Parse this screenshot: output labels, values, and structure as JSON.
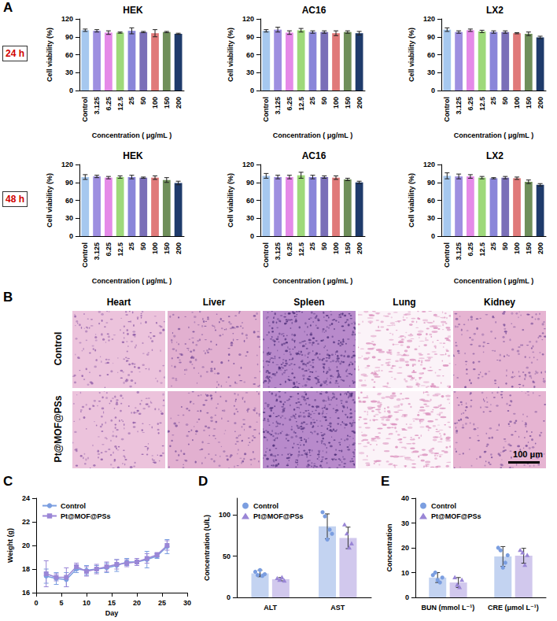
{
  "panel_letters": [
    "A",
    "B",
    "C",
    "D",
    "E"
  ],
  "row_labels": [
    "24 h",
    "48 h"
  ],
  "histology": {
    "columns": [
      "Heart",
      "Liver",
      "Spleen",
      "Lung",
      "Kidney"
    ],
    "rows": [
      "Control",
      "Pt@MOF@PSs"
    ],
    "scale_bar": "100 μm"
  },
  "chart_data": [
    {
      "type": "bar",
      "title": "HEK",
      "x_label": "Concentration ( μg/mL )",
      "y_label": "Cell viability (%)",
      "categories": [
        "Control",
        "3.125",
        "6.25",
        "12.5",
        "25",
        "50",
        "100",
        "150",
        "200"
      ],
      "values": [
        101,
        100,
        97,
        97,
        100,
        98,
        96,
        98,
        95
      ],
      "errors": [
        2,
        2,
        3,
        1,
        5,
        1,
        6,
        1,
        1
      ],
      "colors": [
        "#a6c8ef",
        "#9e8fe0",
        "#e58ae8",
        "#9ed97a",
        "#8a86d9",
        "#7a6fb8",
        "#e07a7a",
        "#6f8f5a",
        "#1f3b6b"
      ],
      "ylim": [
        0,
        120
      ],
      "yticks": [
        0,
        30,
        60,
        90,
        120
      ]
    },
    {
      "type": "bar",
      "title": "AC16",
      "x_label": "Concentration ( μg/mL )",
      "y_label": "Cell viability (%)",
      "categories": [
        "Control",
        "3.125",
        "6.25",
        "12.5",
        "25",
        "50",
        "100",
        "150",
        "200"
      ],
      "values": [
        100,
        102,
        97,
        101,
        98,
        98,
        96,
        98,
        96
      ],
      "errors": [
        2,
        4,
        3,
        3,
        2,
        2,
        4,
        2,
        3
      ],
      "colors": [
        "#a6c8ef",
        "#9e8fe0",
        "#e58ae8",
        "#9ed97a",
        "#8a86d9",
        "#7a6fb8",
        "#e07a7a",
        "#6f8f5a",
        "#1f3b6b"
      ],
      "ylim": [
        0,
        120
      ],
      "yticks": [
        0,
        30,
        60,
        90,
        120
      ]
    },
    {
      "type": "bar",
      "title": "LX2",
      "x_label": "Concentration ( μg/mL )",
      "y_label": "Cell viability (%)",
      "categories": [
        "Control",
        "3.125",
        "6.25",
        "12.5",
        "25",
        "50",
        "100",
        "150",
        "200"
      ],
      "values": [
        102,
        98,
        101,
        99,
        98,
        98,
        96,
        95,
        89
      ],
      "errors": [
        3,
        2,
        2,
        2,
        2,
        2,
        1,
        3,
        2
      ],
      "colors": [
        "#a6c8ef",
        "#9e8fe0",
        "#e58ae8",
        "#9ed97a",
        "#8a86d9",
        "#7a6fb8",
        "#e07a7a",
        "#6f8f5a",
        "#1f3b6b"
      ],
      "ylim": [
        0,
        120
      ],
      "yticks": [
        0,
        30,
        60,
        90,
        120
      ]
    },
    {
      "type": "bar",
      "title": "HEK",
      "x_label": "Concentration ( μg/mL )",
      "y_label": "Cell viability (%)",
      "categories": [
        "Control",
        "3.125",
        "6.25",
        "12.5",
        "25",
        "50",
        "100",
        "150",
        "200"
      ],
      "values": [
        99,
        100,
        98,
        99,
        99,
        98,
        98,
        94,
        89
      ],
      "errors": [
        4,
        2,
        2,
        2,
        3,
        1,
        3,
        4,
        3
      ],
      "colors": [
        "#a6c8ef",
        "#9e8fe0",
        "#e58ae8",
        "#9ed97a",
        "#8a86d9",
        "#7a6fb8",
        "#e07a7a",
        "#6f8f5a",
        "#1f3b6b"
      ],
      "ylim": [
        0,
        120
      ],
      "yticks": [
        0,
        30,
        60,
        90,
        120
      ]
    },
    {
      "type": "bar",
      "title": "AC16",
      "x_label": "Concentration ( μg/mL )",
      "y_label": "Cell viability (%)",
      "categories": [
        "Control",
        "3.125",
        "6.25",
        "12.5",
        "25",
        "50",
        "100",
        "150",
        "200"
      ],
      "values": [
        101,
        99,
        99,
        102,
        99,
        99,
        98,
        95,
        90
      ],
      "errors": [
        4,
        3,
        3,
        5,
        3,
        2,
        3,
        2,
        2
      ],
      "colors": [
        "#a6c8ef",
        "#9e8fe0",
        "#e58ae8",
        "#9ed97a",
        "#8a86d9",
        "#7a6fb8",
        "#e07a7a",
        "#6f8f5a",
        "#1f3b6b"
      ],
      "ylim": [
        0,
        120
      ],
      "yticks": [
        0,
        30,
        60,
        90,
        120
      ]
    },
    {
      "type": "bar",
      "title": "LX2",
      "x_label": "Concentration ( μg/mL )",
      "y_label": "Cell viability (%)",
      "categories": [
        "Control",
        "3.125",
        "6.25",
        "12.5",
        "25",
        "50",
        "100",
        "150",
        "200"
      ],
      "values": [
        101,
        100,
        100,
        98,
        97,
        98,
        97,
        91,
        86
      ],
      "errors": [
        5,
        4,
        3,
        2,
        1,
        2,
        2,
        3,
        2
      ],
      "colors": [
        "#a6c8ef",
        "#9e8fe0",
        "#e58ae8",
        "#9ed97a",
        "#8a86d9",
        "#7a6fb8",
        "#e07a7a",
        "#6f8f5a",
        "#1f3b6b"
      ],
      "ylim": [
        0,
        120
      ],
      "yticks": [
        0,
        30,
        60,
        90,
        120
      ]
    },
    {
      "type": "line",
      "x_label": "Day",
      "y_label": "Weight (g)",
      "xlim": [
        0,
        30
      ],
      "xticks": [
        0,
        5,
        10,
        15,
        20,
        25,
        30
      ],
      "ylim": [
        16,
        24
      ],
      "yticks": [
        16,
        18,
        20,
        22,
        24
      ],
      "legend": "upper left",
      "x": [
        2,
        4,
        6,
        8,
        10,
        12,
        14,
        16,
        18,
        20,
        22,
        24,
        26
      ],
      "series": [
        {
          "name": "Control",
          "color": "#7b9ee0",
          "marker": "circle",
          "line_style": "solid",
          "values": [
            17.4,
            17.2,
            17.1,
            18.0,
            17.9,
            18.0,
            18.1,
            18.3,
            18.6,
            18.6,
            18.8,
            19.1,
            19.9
          ],
          "errors": [
            0.6,
            0.5,
            0.6,
            0.3,
            0.4,
            0.3,
            0.4,
            0.5,
            0.3,
            0.3,
            0.7,
            0.2,
            0.6
          ]
        },
        {
          "name": "Pt@MOF@PSs",
          "color": "#9a86d6",
          "marker": "square",
          "line_style": "solid",
          "values": [
            17.6,
            17.3,
            17.3,
            18.2,
            17.8,
            18.0,
            18.2,
            18.4,
            18.5,
            18.6,
            18.9,
            19.2,
            20.0
          ],
          "errors": [
            1.1,
            0.3,
            0.8,
            0.3,
            0.4,
            0.4,
            0.4,
            0.4,
            0.3,
            0.3,
            0.4,
            0.2,
            0.4
          ]
        }
      ]
    },
    {
      "type": "bar",
      "y_label": "Concentration (U/L)",
      "categories": [
        "ALT",
        "AST"
      ],
      "ylim": [
        0,
        120
      ],
      "yticks": [
        0,
        50,
        100
      ],
      "legend": "upper left",
      "series": [
        {
          "name": "Control",
          "color": "#7b9ee0",
          "marker": "circle",
          "values": [
            29,
            86
          ],
          "errors": [
            4,
            15
          ],
          "points": [
            [
              31,
              27,
              33,
              26,
              28
            ],
            [
              103,
              98,
              70,
              82,
              77
            ]
          ]
        },
        {
          "name": "Pt@MOF@PSs",
          "color": "#9a86d6",
          "marker": "triangle",
          "values": [
            22,
            72
          ],
          "errors": [
            2,
            13
          ],
          "points": [
            [
              23,
              21,
              24,
              20
            ],
            [
              88,
              77,
              60,
              65
            ]
          ]
        }
      ]
    },
    {
      "type": "bar",
      "y_label": "Concentration",
      "categories": [
        "BUN (mmol L⁻¹)",
        "CRE (μmol L⁻¹)"
      ],
      "ylim": [
        0,
        40
      ],
      "yticks": [
        0,
        10,
        20,
        30,
        40
      ],
      "legend": "upper left",
      "series": [
        {
          "name": "Control",
          "color": "#7b9ee0",
          "marker": "circle",
          "values": [
            8,
            16.5
          ],
          "errors": [
            2,
            4
          ],
          "points": [
            [
              9,
              10,
              7,
              6,
              8
            ],
            [
              20,
              19,
              12,
              14,
              17
            ]
          ]
        },
        {
          "name": "Pt@MOF@PSs",
          "color": "#9a86d6",
          "marker": "triangle",
          "values": [
            6,
            16.8
          ],
          "errors": [
            2,
            3
          ],
          "points": [
            [
              8,
              5,
              4,
              7
            ],
            [
              19,
              18,
              13,
              17
            ]
          ]
        }
      ]
    }
  ]
}
